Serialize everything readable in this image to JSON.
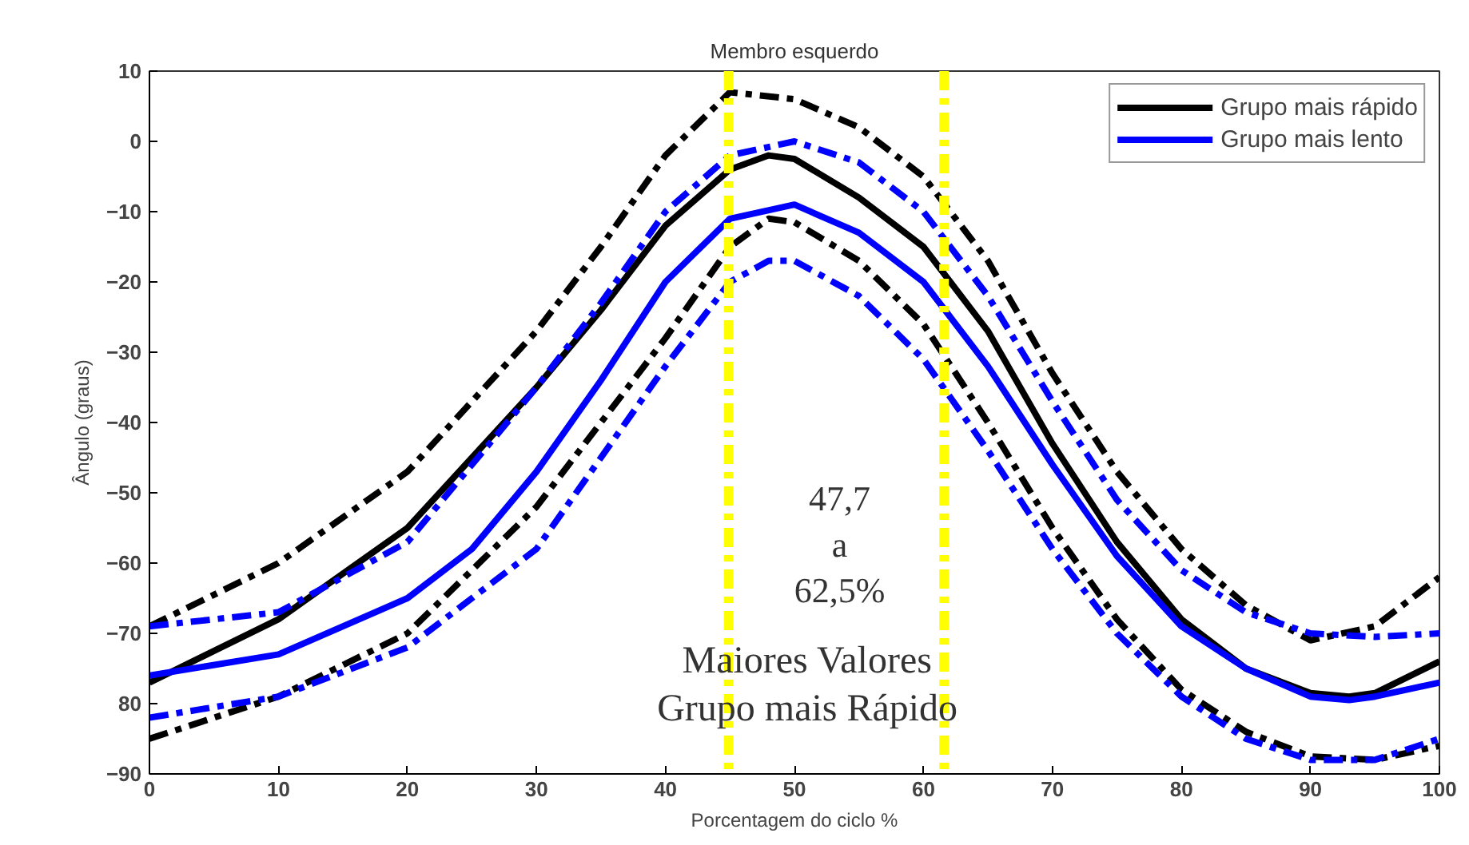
{
  "chart_data": {
    "type": "line",
    "title": "Membro esquerdo",
    "xlabel": "Porcentagem do ciclo %",
    "ylabel": "Ângulo (graus)",
    "xlim": [
      0,
      100
    ],
    "ylim": [
      -90,
      10
    ],
    "xticks": [
      0,
      10,
      20,
      30,
      40,
      50,
      60,
      70,
      80,
      90,
      100
    ],
    "yticks": [
      10,
      0,
      -10,
      -20,
      -30,
      -40,
      -50,
      -60,
      -70,
      {
        "value": -80,
        "label": "80"
      },
      -90
    ],
    "grid": false,
    "legend": "top right",
    "series": [
      {
        "name": "Grupo mais rápido",
        "color": "#000000",
        "line_style": "solid",
        "x": [
          0,
          10,
          20,
          30,
          35,
          40,
          45,
          48,
          50,
          55,
          60,
          65,
          70,
          75,
          80,
          85,
          90,
          93,
          95,
          100
        ],
        "values": [
          -77,
          -68,
          -55,
          -35,
          -24,
          -12,
          -4,
          -2,
          -2.5,
          -8,
          -15,
          -27,
          -43,
          -57,
          -68,
          -75,
          -78.5,
          -79,
          -78.5,
          -74
        ]
      },
      {
        "name": "Grupo mais lento",
        "color": "#0000ff",
        "line_style": "solid",
        "x": [
          0,
          10,
          20,
          25,
          30,
          35,
          40,
          45,
          50,
          55,
          60,
          65,
          70,
          75,
          80,
          85,
          90,
          93,
          95,
          100
        ],
        "values": [
          -76,
          -73,
          -65,
          -58,
          -47,
          -34,
          -20,
          -11,
          -9,
          -13,
          -20,
          -32,
          -46,
          -59,
          -69,
          -75,
          -79,
          -79.5,
          -79,
          -77
        ]
      },
      {
        "color": "#000000",
        "line_style": "dashed",
        "x": [
          0,
          10,
          20,
          30,
          35,
          40,
          45,
          50,
          55,
          60,
          65,
          70,
          75,
          80,
          85,
          90,
          95,
          100
        ],
        "values": [
          -69,
          -60,
          -47,
          -27,
          -15,
          -2,
          7,
          6,
          2,
          -5,
          -17,
          -33,
          -47,
          -58,
          -66,
          -71,
          -69,
          -62
        ]
      },
      {
        "color": "#000000",
        "line_style": "dashed",
        "x": [
          0,
          10,
          20,
          30,
          40,
          45,
          48,
          50,
          55,
          60,
          65,
          70,
          75,
          80,
          85,
          90,
          95,
          100
        ],
        "values": [
          -85,
          -79,
          -70,
          -52,
          -28,
          -15,
          -11,
          -11.5,
          -17,
          -26,
          -40,
          -55,
          -68,
          -78,
          -84,
          -87.5,
          -88,
          -86
        ]
      },
      {
        "color": "#0000ff",
        "line_style": "dashed",
        "x": [
          0,
          10,
          20,
          30,
          35,
          40,
          45,
          50,
          55,
          60,
          65,
          70,
          75,
          80,
          85,
          90,
          95,
          100
        ],
        "values": [
          -69,
          -67,
          -57,
          -35,
          -23,
          -10,
          -2,
          0,
          -3,
          -10,
          -22,
          -37,
          -51,
          -61,
          -67,
          -70,
          -70.5,
          -70
        ]
      },
      {
        "color": "#0000ff",
        "line_style": "dashed",
        "x": [
          0,
          10,
          20,
          30,
          35,
          40,
          45,
          48,
          50,
          55,
          60,
          65,
          70,
          75,
          80,
          85,
          90,
          95,
          100
        ],
        "values": [
          -82,
          -79,
          -72,
          -58,
          -45,
          -32,
          -20,
          -17,
          -17,
          -22,
          -31,
          -44,
          -58,
          -70,
          -79,
          -85,
          -88,
          -88,
          -85
        ]
      }
    ],
    "ref_lines": [
      {
        "axis": "x",
        "value": 44.9,
        "label": null,
        "color": "#ffff00",
        "line_style": "dashed"
      },
      {
        "axis": "x",
        "value": 61.6,
        "label": null,
        "color": "#ffff00",
        "line_style": "dashed"
      }
    ],
    "annotations": [
      "47,7\na\n62,5%",
      "Maiores Valores\nGrupo mais Rápido"
    ]
  }
}
